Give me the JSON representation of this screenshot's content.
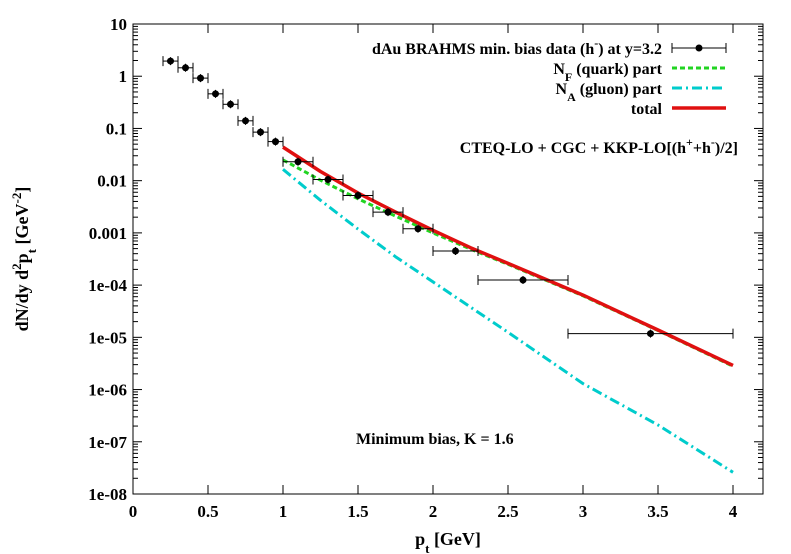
{
  "chart_data": {
    "type": "scatter",
    "title": "",
    "xlabel": {
      "base": "p",
      "sub": "t",
      "rest": " [GeV]"
    },
    "ylabel": {
      "parts": [
        {
          "t": "dN/dy d"
        },
        {
          "t": "2",
          "s": "sup"
        },
        {
          "t": "p"
        },
        {
          "t": "t",
          "s": "sub"
        },
        {
          "t": " [GeV"
        },
        {
          "t": "-2",
          "s": "sup"
        },
        {
          "t": "]"
        }
      ]
    },
    "xlim": [
      0,
      4.2
    ],
    "ylim": [
      1e-08,
      10
    ],
    "y_scale": "log",
    "grid": false,
    "legend_position": "top-right",
    "x_ticks": [
      {
        "v": 0,
        "label": "0"
      },
      {
        "v": 0.5,
        "label": "0.5"
      },
      {
        "v": 1,
        "label": "1"
      },
      {
        "v": 1.5,
        "label": "1.5"
      },
      {
        "v": 2,
        "label": "2"
      },
      {
        "v": 2.5,
        "label": "2.5"
      },
      {
        "v": 3,
        "label": "3"
      },
      {
        "v": 3.5,
        "label": "3.5"
      },
      {
        "v": 4,
        "label": "4"
      }
    ],
    "y_ticks": [
      {
        "v": 10,
        "label": "10"
      },
      {
        "v": 1,
        "label": "1"
      },
      {
        "v": 0.1,
        "label": "0.1"
      },
      {
        "v": 0.01,
        "label": "0.01"
      },
      {
        "v": 0.001,
        "label": "0.001"
      },
      {
        "v": 0.0001,
        "label": "1e-04"
      },
      {
        "v": 1e-05,
        "label": "1e-05"
      },
      {
        "v": 1e-06,
        "label": "1e-06"
      },
      {
        "v": 1e-07,
        "label": "1e-07"
      },
      {
        "v": 1e-08,
        "label": "1e-08"
      }
    ],
    "legend": [
      {
        "key": "data",
        "parts": [
          {
            "t": "dAu BRAHMS min. bias data (h"
          },
          {
            "t": "-",
            "s": "sup"
          },
          {
            "t": ") at y=3.2"
          }
        ]
      },
      {
        "key": "quark",
        "parts": [
          {
            "t": "N"
          },
          {
            "t": "F",
            "s": "sub"
          },
          {
            "t": " (quark) part"
          }
        ]
      },
      {
        "key": "gluon",
        "parts": [
          {
            "t": "N"
          },
          {
            "t": "A",
            "s": "sub"
          },
          {
            "t": " (gluon) part"
          }
        ]
      },
      {
        "key": "total",
        "parts": [
          {
            "t": "total"
          }
        ]
      }
    ],
    "annotations": [
      {
        "key": "model",
        "parts": [
          {
            "t": "CTEQ-LO + CGC + KKP-LO[(h"
          },
          {
            "t": "+",
            "s": "sup"
          },
          {
            "t": "+h"
          },
          {
            "t": "-",
            "s": "sup"
          },
          {
            "t": ")/2]"
          }
        ]
      },
      {
        "key": "bias",
        "parts": [
          {
            "t": "Minimum bias,   K = 1.6"
          }
        ]
      }
    ],
    "series": [
      {
        "name": "dAu BRAHMS min. bias data (h-) at y=3.2",
        "style": "points-xerror",
        "color": "#000000",
        "points": [
          {
            "x": 0.25,
            "y": 1.95,
            "xerr": 0.05
          },
          {
            "x": 0.35,
            "y": 1.45,
            "xerr": 0.05
          },
          {
            "x": 0.45,
            "y": 0.92,
            "xerr": 0.05
          },
          {
            "x": 0.55,
            "y": 0.46,
            "xerr": 0.05
          },
          {
            "x": 0.65,
            "y": 0.29,
            "xerr": 0.05
          },
          {
            "x": 0.75,
            "y": 0.14,
            "xerr": 0.05
          },
          {
            "x": 0.85,
            "y": 0.085,
            "xerr": 0.05
          },
          {
            "x": 0.95,
            "y": 0.056,
            "xerr": 0.05
          },
          {
            "x": 1.1,
            "y": 0.023,
            "xerr": 0.1
          },
          {
            "x": 1.3,
            "y": 0.0105,
            "xerr": 0.1
          },
          {
            "x": 1.5,
            "y": 0.0052,
            "xerr": 0.1
          },
          {
            "x": 1.7,
            "y": 0.0025,
            "xerr": 0.1
          },
          {
            "x": 1.9,
            "y": 0.0012,
            "xerr": 0.1
          },
          {
            "x": 2.15,
            "y": 0.00045,
            "xerr": 0.15
          },
          {
            "x": 2.6,
            "y": 0.000125,
            "xerr": 0.3
          },
          {
            "x": 3.45,
            "y": 1.18e-05,
            "xerr": 0.55
          }
        ]
      },
      {
        "name": "NF (quark) part",
        "style": "dashed",
        "color": "#22d422",
        "points": [
          {
            "x": 1.0,
            "y": 0.025
          },
          {
            "x": 1.25,
            "y": 0.0102
          },
          {
            "x": 1.5,
            "y": 0.0045
          },
          {
            "x": 1.75,
            "y": 0.0021
          },
          {
            "x": 2.0,
            "y": 0.001
          },
          {
            "x": 2.25,
            "y": 0.00049
          },
          {
            "x": 2.5,
            "y": 0.00025
          },
          {
            "x": 3.0,
            "y": 6.25e-05
          },
          {
            "x": 3.5,
            "y": 1.35e-05
          },
          {
            "x": 4.0,
            "y": 2.8e-06
          }
        ]
      },
      {
        "name": "NA (gluon) part",
        "style": "dash-dot",
        "color": "#00cccc",
        "points": [
          {
            "x": 1.0,
            "y": 0.0165
          },
          {
            "x": 1.25,
            "y": 0.0042
          },
          {
            "x": 1.5,
            "y": 0.00118
          },
          {
            "x": 1.75,
            "y": 0.00035
          },
          {
            "x": 2.0,
            "y": 0.000115
          },
          {
            "x": 2.5,
            "y": 1.25e-05
          },
          {
            "x": 3.0,
            "y": 1.3e-06
          },
          {
            "x": 3.5,
            "y": 2.1e-07
          },
          {
            "x": 4.0,
            "y": 2.6e-08
          }
        ]
      },
      {
        "name": "total",
        "style": "solid",
        "color": "#e01010",
        "points": [
          {
            "x": 1.0,
            "y": 0.044
          },
          {
            "x": 1.25,
            "y": 0.015
          },
          {
            "x": 1.5,
            "y": 0.0058
          },
          {
            "x": 1.75,
            "y": 0.0025
          },
          {
            "x": 2.0,
            "y": 0.00112
          },
          {
            "x": 2.25,
            "y": 0.00052
          },
          {
            "x": 2.5,
            "y": 0.00026
          },
          {
            "x": 3.0,
            "y": 6.45e-05
          },
          {
            "x": 3.5,
            "y": 1.38e-05
          },
          {
            "x": 4.0,
            "y": 2.9e-06
          }
        ]
      }
    ]
  }
}
